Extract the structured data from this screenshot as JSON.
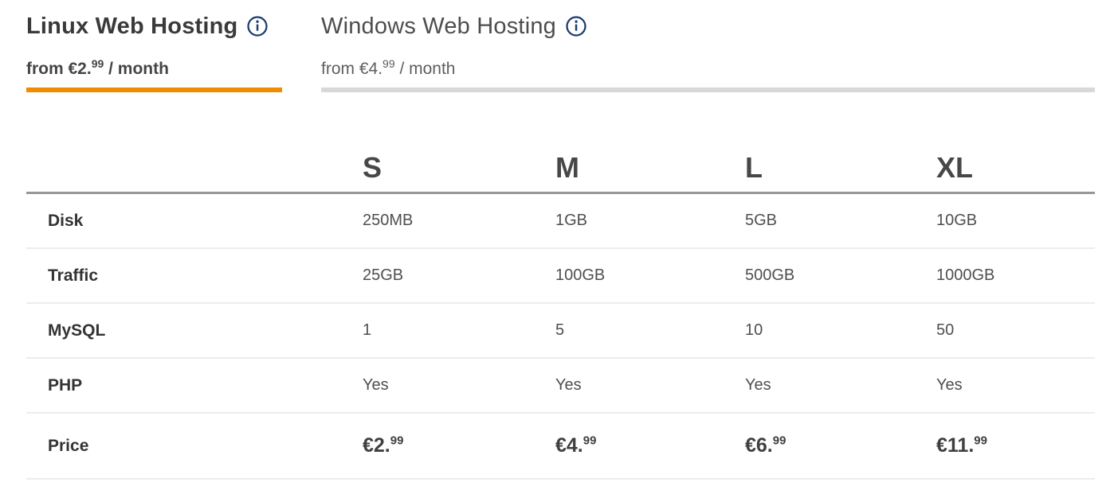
{
  "tabs": [
    {
      "title": "Linux Web Hosting",
      "subtitle_prefix": "from €2.",
      "subtitle_sup": "99",
      "subtitle_suffix": " / month",
      "state": "active"
    },
    {
      "title": "Windows Web Hosting",
      "subtitle_prefix": "from €4.",
      "subtitle_sup": "99",
      "subtitle_suffix": " / month",
      "state": "inactive"
    }
  ],
  "table": {
    "columns": [
      "S",
      "M",
      "L",
      "XL"
    ],
    "rows": [
      {
        "label": "Disk",
        "type": "text",
        "values": [
          "250MB",
          "1GB",
          "5GB",
          "10GB"
        ]
      },
      {
        "label": "Traffic",
        "type": "text",
        "values": [
          "25GB",
          "100GB",
          "500GB",
          "1000GB"
        ]
      },
      {
        "label": "MySQL",
        "type": "text",
        "values": [
          "1",
          "5",
          "10",
          "50"
        ]
      },
      {
        "label": "PHP",
        "type": "text",
        "values": [
          "Yes",
          "Yes",
          "Yes",
          "Yes"
        ]
      },
      {
        "label": "Price",
        "type": "price",
        "values": [
          {
            "main": "€2.",
            "sup": "99"
          },
          {
            "main": "€4.",
            "sup": "99"
          },
          {
            "main": "€6.",
            "sup": "99"
          },
          {
            "main": "€11.",
            "sup": "99"
          }
        ]
      }
    ]
  },
  "colors": {
    "active_tab_underline": "#F08C00",
    "inactive_tab_underline": "#D8D8D8",
    "info_icon_blue": "#1B3C6E",
    "header_rule": "#979797",
    "row_rule": "#ECECEC"
  }
}
